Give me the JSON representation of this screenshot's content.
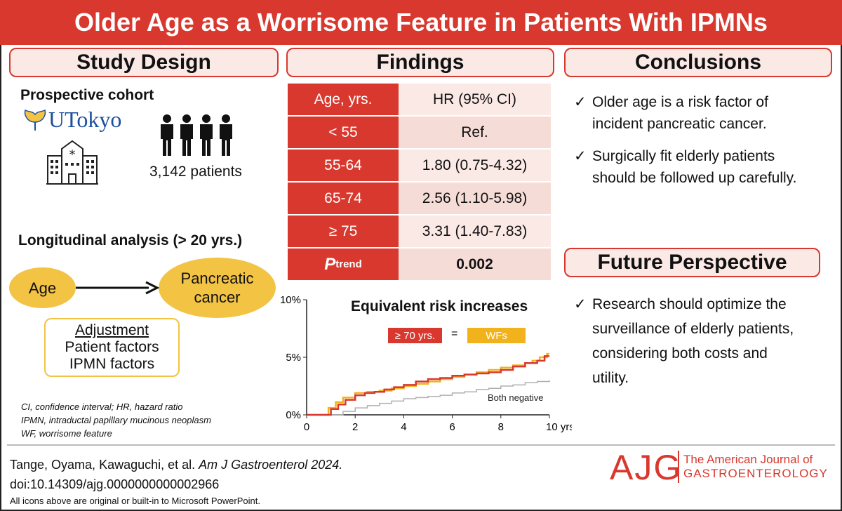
{
  "title": "Older Age as a Worrisome Feature in Patients With IPMNs",
  "sections": {
    "study_design": "Study Design",
    "findings": "Findings",
    "conclusions": "Conclusions",
    "future": "Future Perspective"
  },
  "study": {
    "cohort_label": "Prospective cohort",
    "institution": "UTokyo",
    "patients": "3,142 patients",
    "longitudinal": "Longitudinal analysis (> 20 yrs.)",
    "node_age": "Age",
    "node_cancer_l1": "Pancreatic",
    "node_cancer_l2": "cancer",
    "adjustment_title": "Adjustment",
    "adjustment_1": "Patient factors",
    "adjustment_2": "IPMN factors",
    "abbrev_1": "CI, confidence interval; HR, hazard ratio",
    "abbrev_2": "IPMN, intraductal papillary mucinous neoplasm",
    "abbrev_3": "WF, worrisome feature"
  },
  "table": {
    "col_age": "Age, yrs.",
    "col_hr": "HR (95% CI)",
    "rows": [
      {
        "age": "< 55",
        "hr": "Ref."
      },
      {
        "age": "55-64",
        "hr": "1.80 (0.75-4.32)"
      },
      {
        "age": "65-74",
        "hr": "2.56 (1.10-5.98)"
      },
      {
        "age": "≥ 75",
        "hr": "3.31 (1.40-7.83)"
      }
    ],
    "ptrend_p": "P",
    "ptrend_sub": "trend",
    "ptrend_value": "0.002"
  },
  "chart_data": {
    "type": "line",
    "title": "Equivalent risk increases",
    "legend_a": "≥ 70 yrs.",
    "legend_eq": "=",
    "legend_b": "WFs",
    "series_label_c": "Both negative",
    "x_ticks": [
      "0",
      "2",
      "4",
      "6",
      "8",
      "10 yrs."
    ],
    "y_ticks": [
      "0%",
      "5%",
      "10%"
    ],
    "xlim": [
      0,
      10
    ],
    "ylim": [
      0,
      10
    ],
    "colors": {
      "age70": "#d8382e",
      "wfs": "#f2b21c",
      "neg": "#b0b0b0"
    },
    "series": [
      {
        "name": "≥ 70 yrs.",
        "key": "age70",
        "x": [
          0,
          0.8,
          1.0,
          1.3,
          1.6,
          2.0,
          2.4,
          2.8,
          3.2,
          3.6,
          4.0,
          4.5,
          5.0,
          5.5,
          6.0,
          6.5,
          7.0,
          7.5,
          8.0,
          8.5,
          9.0,
          9.5,
          9.8,
          10
        ],
        "y": [
          0,
          0,
          0.5,
          0.9,
          1.3,
          1.7,
          1.9,
          2.0,
          2.2,
          2.4,
          2.6,
          2.9,
          3.1,
          3.2,
          3.4,
          3.5,
          3.6,
          3.7,
          3.9,
          4.2,
          4.5,
          4.7,
          5.1,
          5.1
        ]
      },
      {
        "name": "WFs",
        "key": "wfs",
        "x": [
          0,
          0.6,
          0.9,
          1.2,
          1.5,
          2.0,
          2.5,
          3.0,
          3.5,
          4.0,
          4.5,
          5.0,
          5.5,
          6.0,
          6.5,
          7.0,
          7.5,
          8.0,
          8.5,
          9.0,
          9.3,
          9.6,
          9.9,
          10
        ],
        "y": [
          0,
          0,
          0.6,
          1.1,
          1.5,
          1.9,
          2.0,
          2.1,
          2.3,
          2.5,
          2.7,
          2.9,
          3.1,
          3.3,
          3.5,
          3.7,
          3.9,
          4.1,
          4.3,
          4.5,
          4.7,
          5.0,
          5.3,
          5.3
        ]
      },
      {
        "name": "Both negative",
        "key": "neg",
        "x": [
          0,
          1.0,
          1.5,
          2.0,
          2.5,
          3.0,
          3.5,
          4.0,
          4.5,
          5.0,
          5.5,
          6.0,
          6.5,
          7.0,
          7.5,
          8.0,
          8.5,
          9.0,
          9.5,
          10
        ],
        "y": [
          0,
          0,
          0.3,
          0.6,
          0.8,
          1.0,
          1.2,
          1.4,
          1.5,
          1.6,
          1.7,
          1.9,
          2.0,
          2.2,
          2.3,
          2.5,
          2.6,
          2.8,
          2.9,
          3.0
        ]
      }
    ]
  },
  "conclusions": {
    "c1_l1": "Older age is a risk factor of",
    "c1_l2": "incident pancreatic cancer.",
    "c2_l1": "Surgically fit elderly patients",
    "c2_l2": "should be followed up carefully.",
    "f1_l1": "Research should optimize the",
    "f1_l2": "surveillance of elderly patients,",
    "f1_l3": "considering both costs and",
    "f1_l4": "utility.",
    "check": "✓"
  },
  "footer": {
    "citation_authors": "Tange, Oyama, Kawaguchi, et al. ",
    "citation_journal": "Am J Gastroenterol 2024.",
    "doi": "doi:10.14309/ajg.0000000000002966",
    "icons_note": "All icons above are original or built-in to Microsoft PowerPoint.",
    "journal_logo": "AJG",
    "journal_name_l1": "The American Journal of",
    "journal_name_l2": "GASTROENTEROLOGY"
  }
}
